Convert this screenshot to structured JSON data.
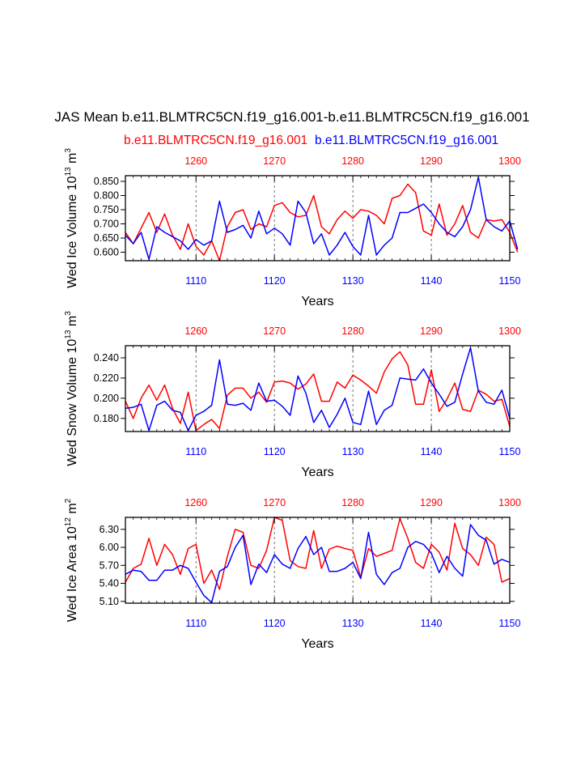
{
  "title": "JAS Mean b.e11.BLMTRC5CN.f19_g16.001-b.e11.BLMTRC5CN.f19_g16.001",
  "legend": {
    "red_case": "b.e11.BLMTRC5CN.f19_g16.001",
    "blue_case": "b.e11.BLMTRC5CN.f19_g16.001"
  },
  "colors": {
    "red": "#ff0000",
    "blue": "#0000ff",
    "axis": "#000000",
    "grid": "#555555"
  },
  "chart_data": [
    {
      "type": "line",
      "ylabel": "Wed Ice Volume 10",
      "ylabel_exp": "13",
      "ylabel_unit": " m",
      "ylabel_unit_exp": "3",
      "xlabel": "Years",
      "xlim_bottom": [
        1101,
        1150
      ],
      "xlim_top": [
        1251,
        1300
      ],
      "ylim": [
        0.57,
        0.87
      ],
      "yticks": [
        0.6,
        0.65,
        0.7,
        0.75,
        0.8,
        0.85
      ],
      "ytick_labels": [
        "0.600",
        "0.650",
        "0.700",
        "0.750",
        "0.800",
        "0.850"
      ],
      "xticks_bottom": [
        1110,
        1120,
        1130,
        1140,
        1150
      ],
      "xticks_top": [
        1260,
        1270,
        1280,
        1290,
        1300
      ],
      "grid": "vertical dashed at major ticks",
      "series": [
        {
          "color": "red",
          "axis": "top",
          "x_start": 1251,
          "values": [
            0.67,
            0.63,
            0.685,
            0.74,
            0.67,
            0.735,
            0.66,
            0.61,
            0.7,
            0.62,
            0.59,
            0.64,
            0.57,
            0.69,
            0.74,
            0.75,
            0.68,
            0.7,
            0.69,
            0.765,
            0.775,
            0.74,
            0.725,
            0.73,
            0.8,
            0.69,
            0.665,
            0.715,
            0.745,
            0.72,
            0.75,
            0.745,
            0.73,
            0.7,
            0.79,
            0.8,
            0.84,
            0.81,
            0.675,
            0.66,
            0.77,
            0.66,
            0.7,
            0.765,
            0.67,
            0.65,
            0.715,
            0.71,
            0.715,
            0.67,
            0.6
          ]
        },
        {
          "color": "blue",
          "axis": "bottom",
          "x_start": 1101,
          "values": [
            0.66,
            0.63,
            0.67,
            0.575,
            0.69,
            0.67,
            0.655,
            0.64,
            0.61,
            0.645,
            0.625,
            0.64,
            0.78,
            0.67,
            0.68,
            0.695,
            0.65,
            0.745,
            0.665,
            0.685,
            0.665,
            0.625,
            0.78,
            0.74,
            0.63,
            0.665,
            0.59,
            0.625,
            0.67,
            0.62,
            0.59,
            0.73,
            0.59,
            0.625,
            0.65,
            0.74,
            0.74,
            0.755,
            0.77,
            0.74,
            0.7,
            0.67,
            0.655,
            0.69,
            0.75,
            0.865,
            0.715,
            0.69,
            0.675,
            0.71,
            0.61
          ]
        }
      ]
    },
    {
      "type": "line",
      "ylabel": "Wed Snow Volume 10",
      "ylabel_exp": "13",
      "ylabel_unit": " m",
      "ylabel_unit_exp": "3",
      "xlabel": "Years",
      "xlim_bottom": [
        1101,
        1150
      ],
      "xlim_top": [
        1251,
        1300
      ],
      "ylim": [
        0.167,
        0.252
      ],
      "yticks": [
        0.18,
        0.2,
        0.22,
        0.24
      ],
      "ytick_labels": [
        "0.180",
        "0.200",
        "0.220",
        "0.240"
      ],
      "xticks_bottom": [
        1110,
        1120,
        1130,
        1140,
        1150
      ],
      "xticks_top": [
        1260,
        1270,
        1280,
        1290,
        1300
      ],
      "grid": "vertical dashed at major ticks",
      "series": [
        {
          "color": "red",
          "axis": "top",
          "x_start": 1251,
          "values": [
            0.197,
            0.18,
            0.2,
            0.213,
            0.198,
            0.213,
            0.19,
            0.175,
            0.206,
            0.168,
            0.174,
            0.179,
            0.17,
            0.203,
            0.21,
            0.21,
            0.2,
            0.206,
            0.196,
            0.216,
            0.217,
            0.215,
            0.209,
            0.214,
            0.224,
            0.197,
            0.197,
            0.216,
            0.21,
            0.223,
            0.218,
            0.212,
            0.205,
            0.226,
            0.239,
            0.246,
            0.233,
            0.194,
            0.194,
            0.228,
            0.187,
            0.199,
            0.215,
            0.189,
            0.187,
            0.208,
            0.204,
            0.197,
            0.199,
            0.172
          ]
        },
        {
          "color": "blue",
          "axis": "bottom",
          "x_start": 1101,
          "values": [
            0.19,
            0.191,
            0.194,
            0.168,
            0.193,
            0.197,
            0.188,
            0.186,
            0.168,
            0.183,
            0.187,
            0.193,
            0.238,
            0.194,
            0.193,
            0.195,
            0.188,
            0.215,
            0.197,
            0.198,
            0.192,
            0.183,
            0.222,
            0.205,
            0.176,
            0.188,
            0.171,
            0.184,
            0.2,
            0.176,
            0.174,
            0.207,
            0.174,
            0.188,
            0.193,
            0.22,
            0.219,
            0.218,
            0.229,
            0.215,
            0.204,
            0.192,
            0.196,
            0.224,
            0.25,
            0.207,
            0.196,
            0.194,
            0.208,
            0.18
          ]
        }
      ]
    },
    {
      "type": "line",
      "ylabel": "Wed Ice Area 10",
      "ylabel_exp": "12",
      "ylabel_unit": " m",
      "ylabel_unit_exp": "2",
      "xlabel": "Years",
      "xlim_bottom": [
        1101,
        1150
      ],
      "xlim_top": [
        1251,
        1300
      ],
      "ylim": [
        5.07,
        6.5
      ],
      "yticks": [
        5.1,
        5.4,
        5.7,
        6.0,
        6.3
      ],
      "ytick_labels": [
        "5.10",
        "5.40",
        "5.70",
        "6.00",
        "6.30"
      ],
      "xticks_bottom": [
        1110,
        1120,
        1130,
        1140,
        1150
      ],
      "xticks_top": [
        1260,
        1270,
        1280,
        1290,
        1300
      ],
      "grid": "vertical dashed at major ticks",
      "series": [
        {
          "color": "red",
          "axis": "top",
          "x_start": 1251,
          "values": [
            5.42,
            5.65,
            5.72,
            6.15,
            5.7,
            6.05,
            5.88,
            5.55,
            5.98,
            6.05,
            5.4,
            5.62,
            5.3,
            5.85,
            6.3,
            6.25,
            5.7,
            5.65,
            5.95,
            6.5,
            6.45,
            5.78,
            5.68,
            5.65,
            6.28,
            5.65,
            5.97,
            6.02,
            5.98,
            5.95,
            5.5,
            5.98,
            5.85,
            5.9,
            5.95,
            6.48,
            6.15,
            5.75,
            5.65,
            6.05,
            5.92,
            5.62,
            6.4,
            5.98,
            5.88,
            5.7,
            6.17,
            6.05,
            5.42,
            5.48
          ]
        },
        {
          "color": "blue",
          "axis": "bottom",
          "x_start": 1101,
          "values": [
            5.55,
            5.62,
            5.6,
            5.45,
            5.45,
            5.62,
            5.62,
            5.7,
            5.65,
            5.42,
            5.2,
            5.08,
            5.6,
            5.68,
            6.0,
            6.2,
            5.38,
            5.72,
            5.58,
            5.88,
            5.72,
            5.65,
            5.98,
            6.18,
            5.88,
            6.0,
            5.6,
            5.6,
            5.65,
            5.75,
            5.48,
            6.25,
            5.55,
            5.38,
            5.58,
            5.65,
            6.0,
            6.1,
            6.05,
            5.9,
            5.58,
            5.85,
            5.65,
            5.52,
            6.38,
            6.2,
            6.12,
            5.72,
            5.8,
            5.75
          ]
        }
      ]
    }
  ]
}
